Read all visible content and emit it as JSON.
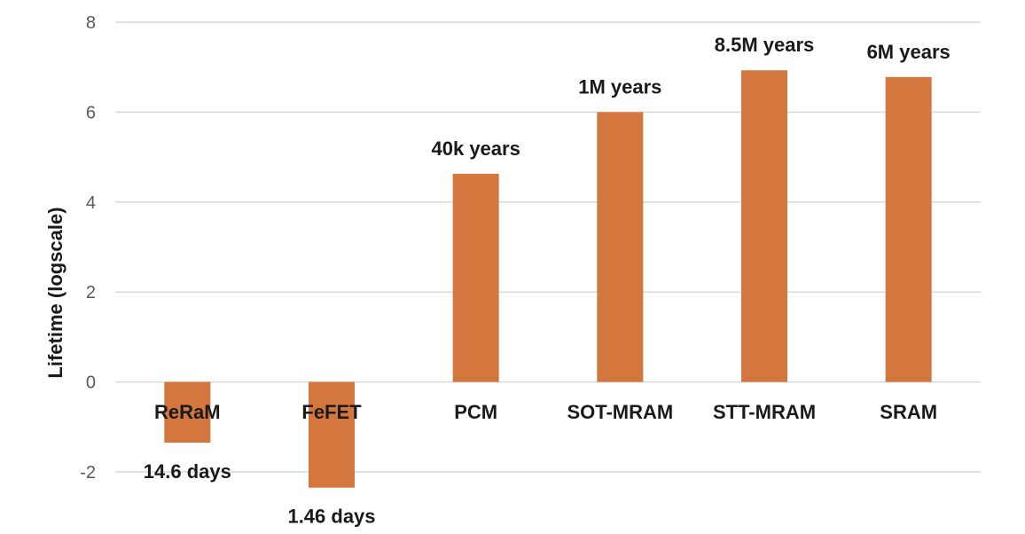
{
  "chart_data": {
    "type": "bar",
    "title": "",
    "xlabel": "",
    "ylabel": "Lifetime (logscale)",
    "ylim": [
      -2,
      8
    ],
    "yticks": [
      -2,
      0,
      2,
      4,
      6,
      8
    ],
    "grid": true,
    "bar_color": "#D4773F",
    "gridline_color": "#D9D9D9",
    "categories": [
      "ReRaM",
      "FeFET",
      "PCM",
      "SOT-MRAM",
      "STT-MRAM",
      "SRAM"
    ],
    "values": [
      -1.35,
      -2.35,
      4.63,
      6.0,
      6.93,
      6.78
    ],
    "data_labels": [
      "14.6 days",
      "1.46 days",
      "40k years",
      "1M years",
      "8.5M years",
      "6M years"
    ]
  }
}
